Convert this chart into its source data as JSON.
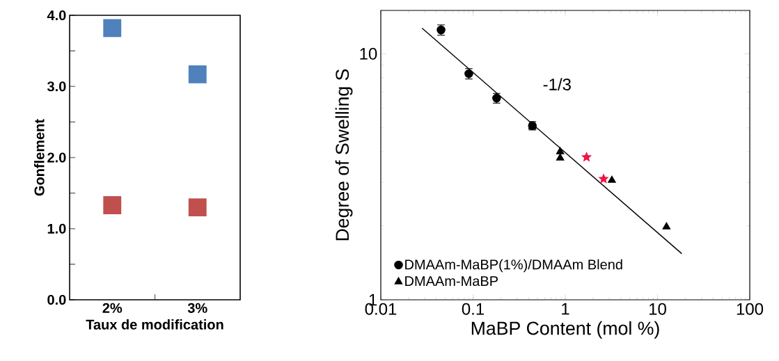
{
  "chart_data": [
    {
      "type": "scatter",
      "xlabel": "Taux de modification",
      "ylabel": "Gonflement",
      "categories": [
        "2%",
        "3%"
      ],
      "marker": "square",
      "series": [
        {
          "color": "#4f81bd",
          "values": [
            3.82,
            3.17
          ]
        },
        {
          "color": "#c0504d",
          "values": [
            1.33,
            1.3
          ]
        }
      ],
      "ylim": [
        0,
        4
      ],
      "yticks": [
        {
          "value": 0,
          "label": "0.0"
        },
        {
          "value": 0.5,
          "label": null
        },
        {
          "value": 1,
          "label": "1.0"
        },
        {
          "value": 1.5,
          "label": null
        },
        {
          "value": 2,
          "label": "2.0"
        },
        {
          "value": 2.5,
          "label": null
        },
        {
          "value": 3,
          "label": "3.0"
        },
        {
          "value": 3.5,
          "label": null
        },
        {
          "value": 4,
          "label": "4.0"
        }
      ],
      "legend": false
    },
    {
      "type": "scatter",
      "xlabel": "MaBP Content (mol %)",
      "ylabel": "Degree of Swelling S",
      "log": "xy",
      "legend": "bottom left",
      "xlim": [
        0.01,
        100
      ],
      "ylim": [
        1,
        15
      ],
      "xticks": [
        0.01,
        0.1,
        1,
        10,
        100
      ],
      "yticks": [
        1,
        10
      ],
      "series": [
        {
          "name": "DMAAm-MaBP(1%)/DMAAm Blend",
          "color": "#000000",
          "marker": "circle",
          "x": [
            0.045,
            0.09,
            0.18,
            0.44
          ],
          "values": [
            12.5,
            8.3,
            6.6,
            5.1
          ],
          "errors": [
            0.6,
            0.4,
            0.3,
            0.2
          ]
        },
        {
          "name": "DMAAm-MaBP",
          "color": "#000000",
          "marker": "triangle",
          "x": [
            0.44,
            0.88,
            0.88,
            3.2,
            12.5
          ],
          "values": [
            5.05,
            4.0,
            3.77,
            3.06,
            1.98
          ]
        },
        {
          "color": "#ee1744",
          "marker": "star",
          "x": [
            1.7,
            2.6
          ],
          "values": [
            3.8,
            3.1
          ]
        },
        {
          "type": "line",
          "color": "#000000",
          "marker": "none",
          "x": [
            0.028,
            18.3
          ],
          "values": [
            12.7,
            1.54
          ]
        }
      ],
      "annotations": [
        "-1/3"
      ]
    }
  ]
}
